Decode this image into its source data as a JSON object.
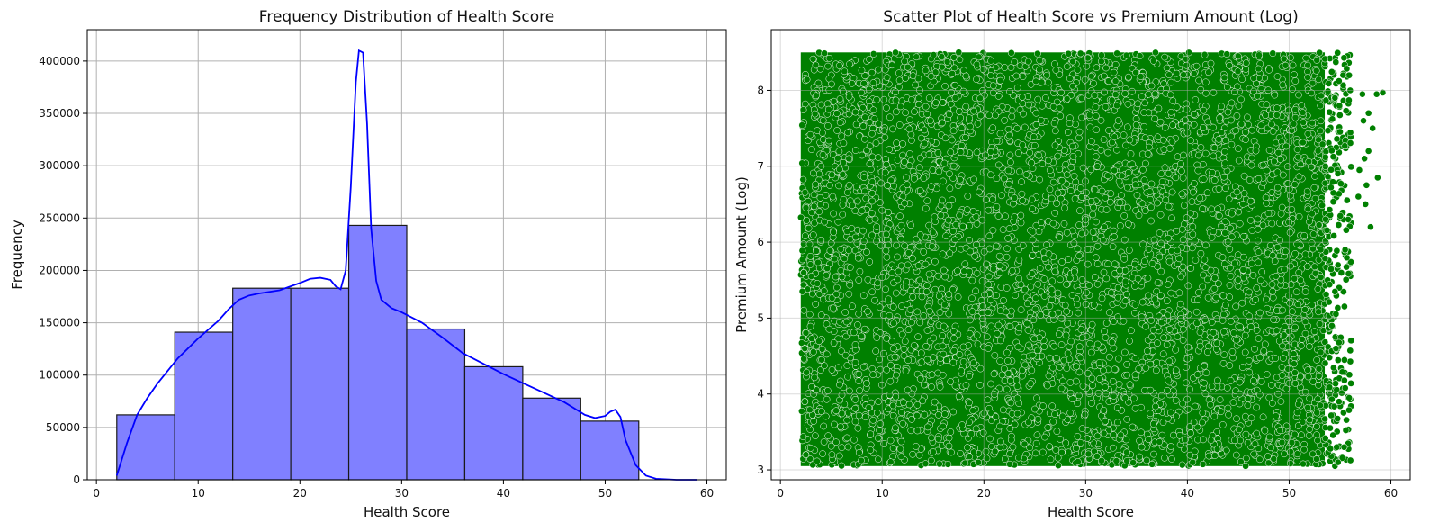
{
  "colors": {
    "hist_fill": "#8080ff",
    "hist_edge": "#1a1a1a",
    "kde_line": "#0000ff",
    "scatter_fill": "#008000",
    "scatter_edge": "#ffffff",
    "grid": "#b0b0b0"
  },
  "chart_data": [
    {
      "type": "bar",
      "title": "Frequency Distribution of Health Score",
      "xlabel": "Health Score",
      "ylabel": "Frequency",
      "xlim": [
        -0.9,
        61.9
      ],
      "ylim": [
        0,
        430000
      ],
      "xticks": [
        0,
        10,
        20,
        30,
        40,
        50,
        60
      ],
      "yticks": [
        0,
        50000,
        100000,
        150000,
        200000,
        250000,
        300000,
        350000,
        400000
      ],
      "grid": true,
      "bins": [
        {
          "x0": 2.0,
          "x1": 7.7,
          "value": 62000
        },
        {
          "x0": 7.7,
          "x1": 13.4,
          "value": 141000
        },
        {
          "x0": 13.4,
          "x1": 19.1,
          "value": 183000
        },
        {
          "x0": 19.1,
          "x1": 24.8,
          "value": 183000
        },
        {
          "x0": 24.8,
          "x1": 30.5,
          "value": 243000
        },
        {
          "x0": 30.5,
          "x1": 36.2,
          "value": 144000
        },
        {
          "x0": 36.2,
          "x1": 41.9,
          "value": 108000
        },
        {
          "x0": 41.9,
          "x1": 47.6,
          "value": 78000
        },
        {
          "x0": 47.6,
          "x1": 53.3,
          "value": 56000
        }
      ],
      "kde": {
        "x": [
          2,
          3,
          4,
          5,
          6,
          8,
          10,
          12,
          13,
          14,
          15,
          16,
          18,
          20,
          21,
          22,
          23,
          23.5,
          24,
          24.5,
          25,
          25.5,
          25.8,
          26.2,
          26.6,
          27,
          27.5,
          28,
          29,
          30,
          32,
          34,
          36,
          38,
          40,
          42,
          44,
          46,
          48,
          49,
          50,
          50.5,
          51,
          51.5,
          52,
          53,
          54,
          55,
          57,
          59
        ],
        "y": [
          4000,
          35000,
          62000,
          78000,
          92000,
          116000,
          135000,
          152000,
          163000,
          172000,
          176000,
          178000,
          181000,
          188000,
          192000,
          193000,
          191000,
          185000,
          182000,
          200000,
          280000,
          380000,
          410000,
          408000,
          340000,
          240000,
          190000,
          172000,
          164000,
          160000,
          150000,
          136000,
          121000,
          111000,
          101000,
          92000,
          83000,
          74000,
          62000,
          59000,
          61000,
          65000,
          67000,
          60000,
          38000,
          14000,
          4000,
          1000,
          0,
          0
        ]
      }
    },
    {
      "type": "scatter",
      "title": "Scatter Plot of Health Score vs Premium Amount (Log)",
      "xlabel": "Health Score",
      "ylabel": "Premium Amount (Log)",
      "xlim": [
        -0.9,
        61.9
      ],
      "ylim": [
        2.87,
        8.8
      ],
      "xticks": [
        0,
        10,
        20,
        30,
        40,
        50,
        60
      ],
      "yticks": [
        3,
        4,
        5,
        6,
        7,
        8
      ],
      "grid": true,
      "dense_region": {
        "x_min": 2.0,
        "x_max": 53.5,
        "y_min": 3.05,
        "y_max": 8.5
      },
      "outliers": [
        {
          "x": 54.5,
          "y": 7.9
        },
        {
          "x": 55.3,
          "y": 8.2
        },
        {
          "x": 56.0,
          "y": 8.0
        },
        {
          "x": 57.2,
          "y": 7.95
        },
        {
          "x": 58.6,
          "y": 7.95
        },
        {
          "x": 59.2,
          "y": 7.97
        },
        {
          "x": 57.8,
          "y": 7.7
        },
        {
          "x": 57.3,
          "y": 7.6
        },
        {
          "x": 58.2,
          "y": 7.5
        },
        {
          "x": 57.8,
          "y": 7.2
        },
        {
          "x": 57.4,
          "y": 7.1
        },
        {
          "x": 56.9,
          "y": 6.95
        },
        {
          "x": 58.7,
          "y": 6.85
        },
        {
          "x": 57.6,
          "y": 6.75
        },
        {
          "x": 56.8,
          "y": 6.6
        },
        {
          "x": 57.5,
          "y": 6.5
        },
        {
          "x": 58.0,
          "y": 6.2
        },
        {
          "x": 55.8,
          "y": 6.3
        },
        {
          "x": 55.5,
          "y": 5.9
        },
        {
          "x": 54.8,
          "y": 5.7
        },
        {
          "x": 54.5,
          "y": 5.35
        },
        {
          "x": 54.2,
          "y": 4.9
        },
        {
          "x": 54.6,
          "y": 4.6
        },
        {
          "x": 54.9,
          "y": 3.9
        },
        {
          "x": 55.9,
          "y": 3.95
        },
        {
          "x": 55.8,
          "y": 3.35
        },
        {
          "x": 55.4,
          "y": 3.3
        },
        {
          "x": 54.5,
          "y": 3.05
        },
        {
          "x": 54.8,
          "y": 3.1
        },
        {
          "x": 2.3,
          "y": 5.6
        },
        {
          "x": 2.4,
          "y": 4.6
        },
        {
          "x": 2.5,
          "y": 3.2
        },
        {
          "x": 2.4,
          "y": 3.9
        }
      ]
    }
  ]
}
